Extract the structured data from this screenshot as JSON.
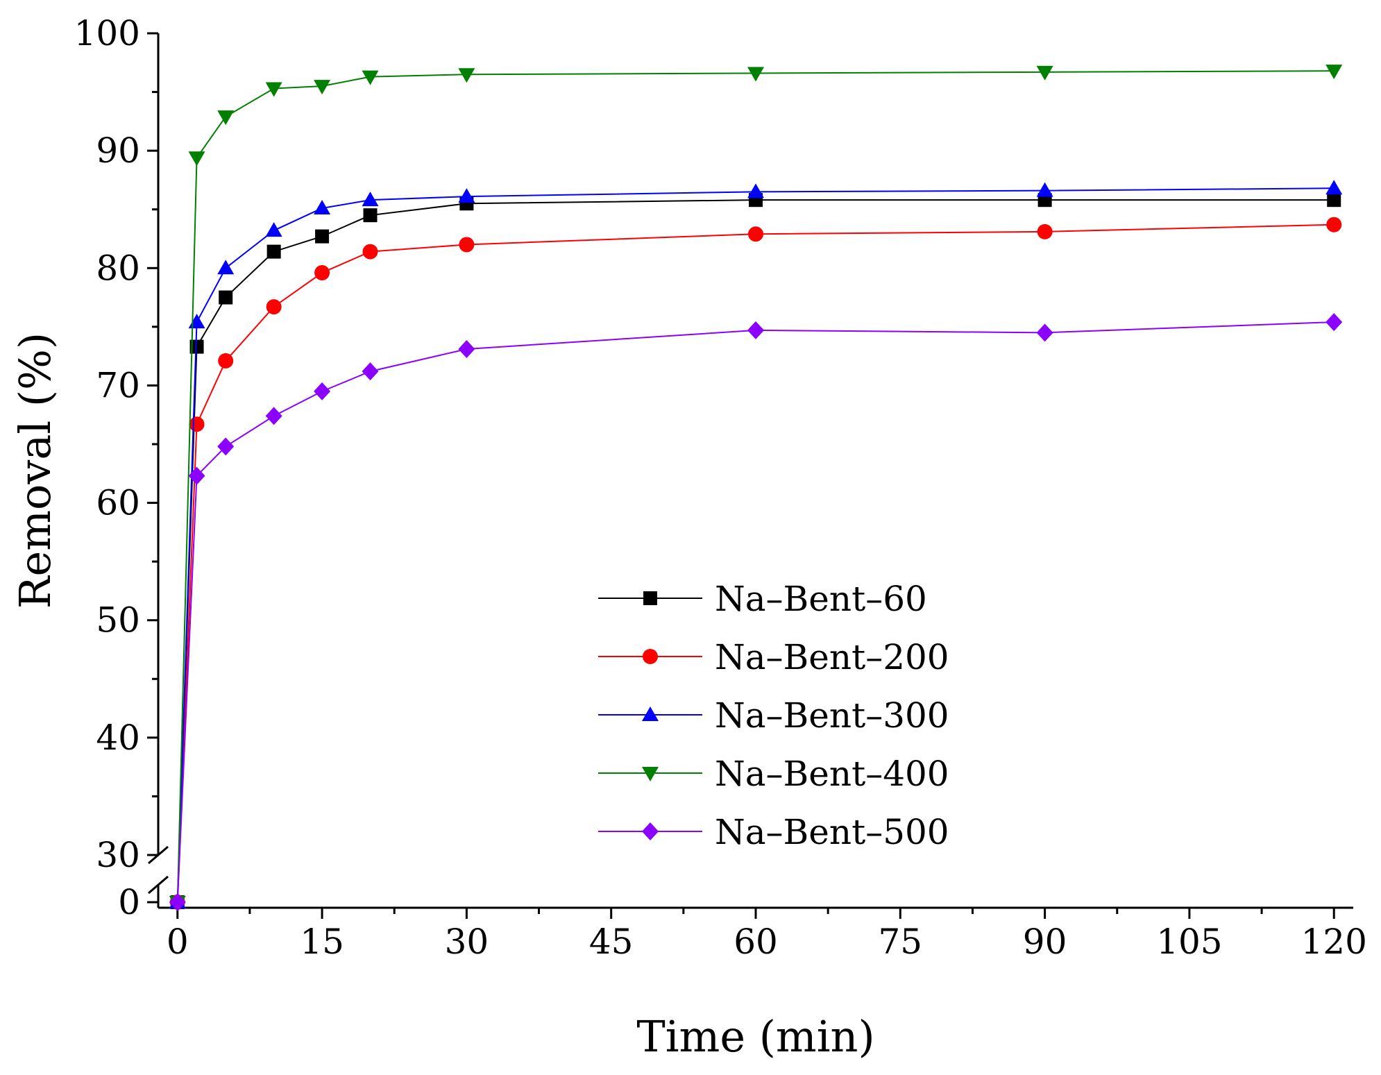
{
  "chart_data": {
    "type": "line",
    "title": "",
    "xlabel": "Time (min)",
    "ylabel": "Removal (%)",
    "x": [
      0,
      2,
      5,
      10,
      15,
      20,
      30,
      60,
      90,
      120
    ],
    "xlim": [
      -2,
      122
    ],
    "ylim": [
      0,
      100
    ],
    "y_axis_break": {
      "from": 0,
      "to": 30
    },
    "x_ticks": [
      0,
      15,
      30,
      45,
      60,
      75,
      90,
      105,
      120
    ],
    "x_tick_labels": [
      "0",
      "15",
      "30",
      "45",
      "60",
      "75",
      "90",
      "105",
      "120"
    ],
    "y_ticks": [
      0,
      30,
      40,
      50,
      60,
      70,
      80,
      90,
      100
    ],
    "y_tick_labels": [
      "0",
      "30",
      "40",
      "50",
      "60",
      "70",
      "80",
      "90",
      "100"
    ],
    "grid": false,
    "legend_position": "center-right",
    "series": [
      {
        "name": "Na–Bent–60",
        "color": "#000000",
        "marker": "square",
        "values": [
          0,
          73.3,
          77.5,
          81.4,
          82.7,
          84.5,
          85.5,
          85.8,
          85.8,
          85.8
        ]
      },
      {
        "name": "Na–Bent–200",
        "color": "#ff0000",
        "marker": "circle",
        "values": [
          0,
          66.7,
          72.1,
          76.7,
          79.6,
          81.4,
          82.0,
          82.9,
          83.1,
          83.7
        ]
      },
      {
        "name": "Na–Bent–300",
        "color": "#0000ff",
        "marker": "triangle-up",
        "values": [
          0,
          75.4,
          80.0,
          83.2,
          85.1,
          85.8,
          86.1,
          86.5,
          86.6,
          86.8
        ]
      },
      {
        "name": "Na–Bent–400",
        "color": "#008000",
        "marker": "triangle-down",
        "values": [
          0,
          89.4,
          92.9,
          95.3,
          95.5,
          96.3,
          96.5,
          96.6,
          96.7,
          96.8
        ]
      },
      {
        "name": "Na–Bent–500",
        "color": "#8b00ff",
        "marker": "diamond",
        "values": [
          0,
          62.3,
          64.8,
          67.4,
          69.5,
          71.2,
          73.1,
          74.7,
          74.5,
          75.4
        ]
      }
    ]
  }
}
